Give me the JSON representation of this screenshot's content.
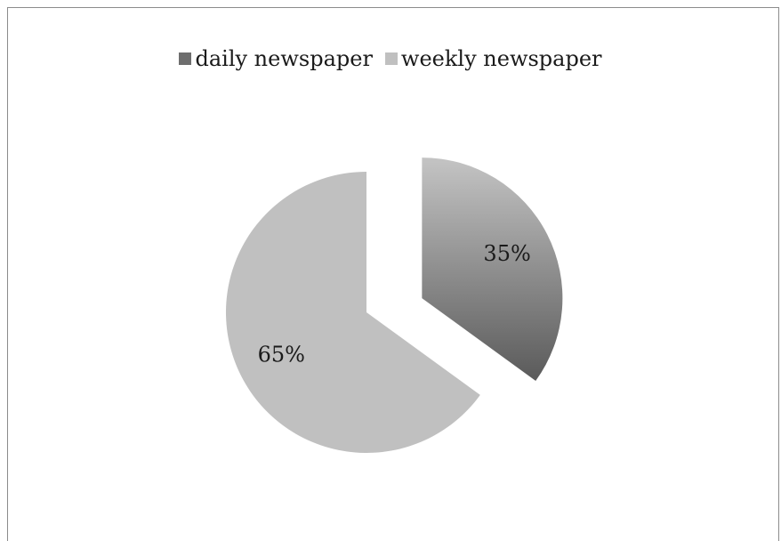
{
  "chart_data": {
    "type": "pie",
    "title": "",
    "categories": [
      "daily newspaper",
      "weekly newspaper"
    ],
    "values": [
      35,
      65
    ],
    "data_labels": [
      "35%",
      "65%"
    ],
    "exploded": [
      true,
      false
    ],
    "legend_position": "top",
    "colors": {
      "daily newspaper": {
        "top": "#c4c4c4",
        "bottom": "#5a5a5a"
      },
      "weekly newspaper": "#c0c0c0"
    }
  },
  "legend": [
    {
      "label": "daily newspaper",
      "swatch": "#6e6e6e"
    },
    {
      "label": "weekly newspaper",
      "swatch": "#c0c0c0"
    }
  ]
}
